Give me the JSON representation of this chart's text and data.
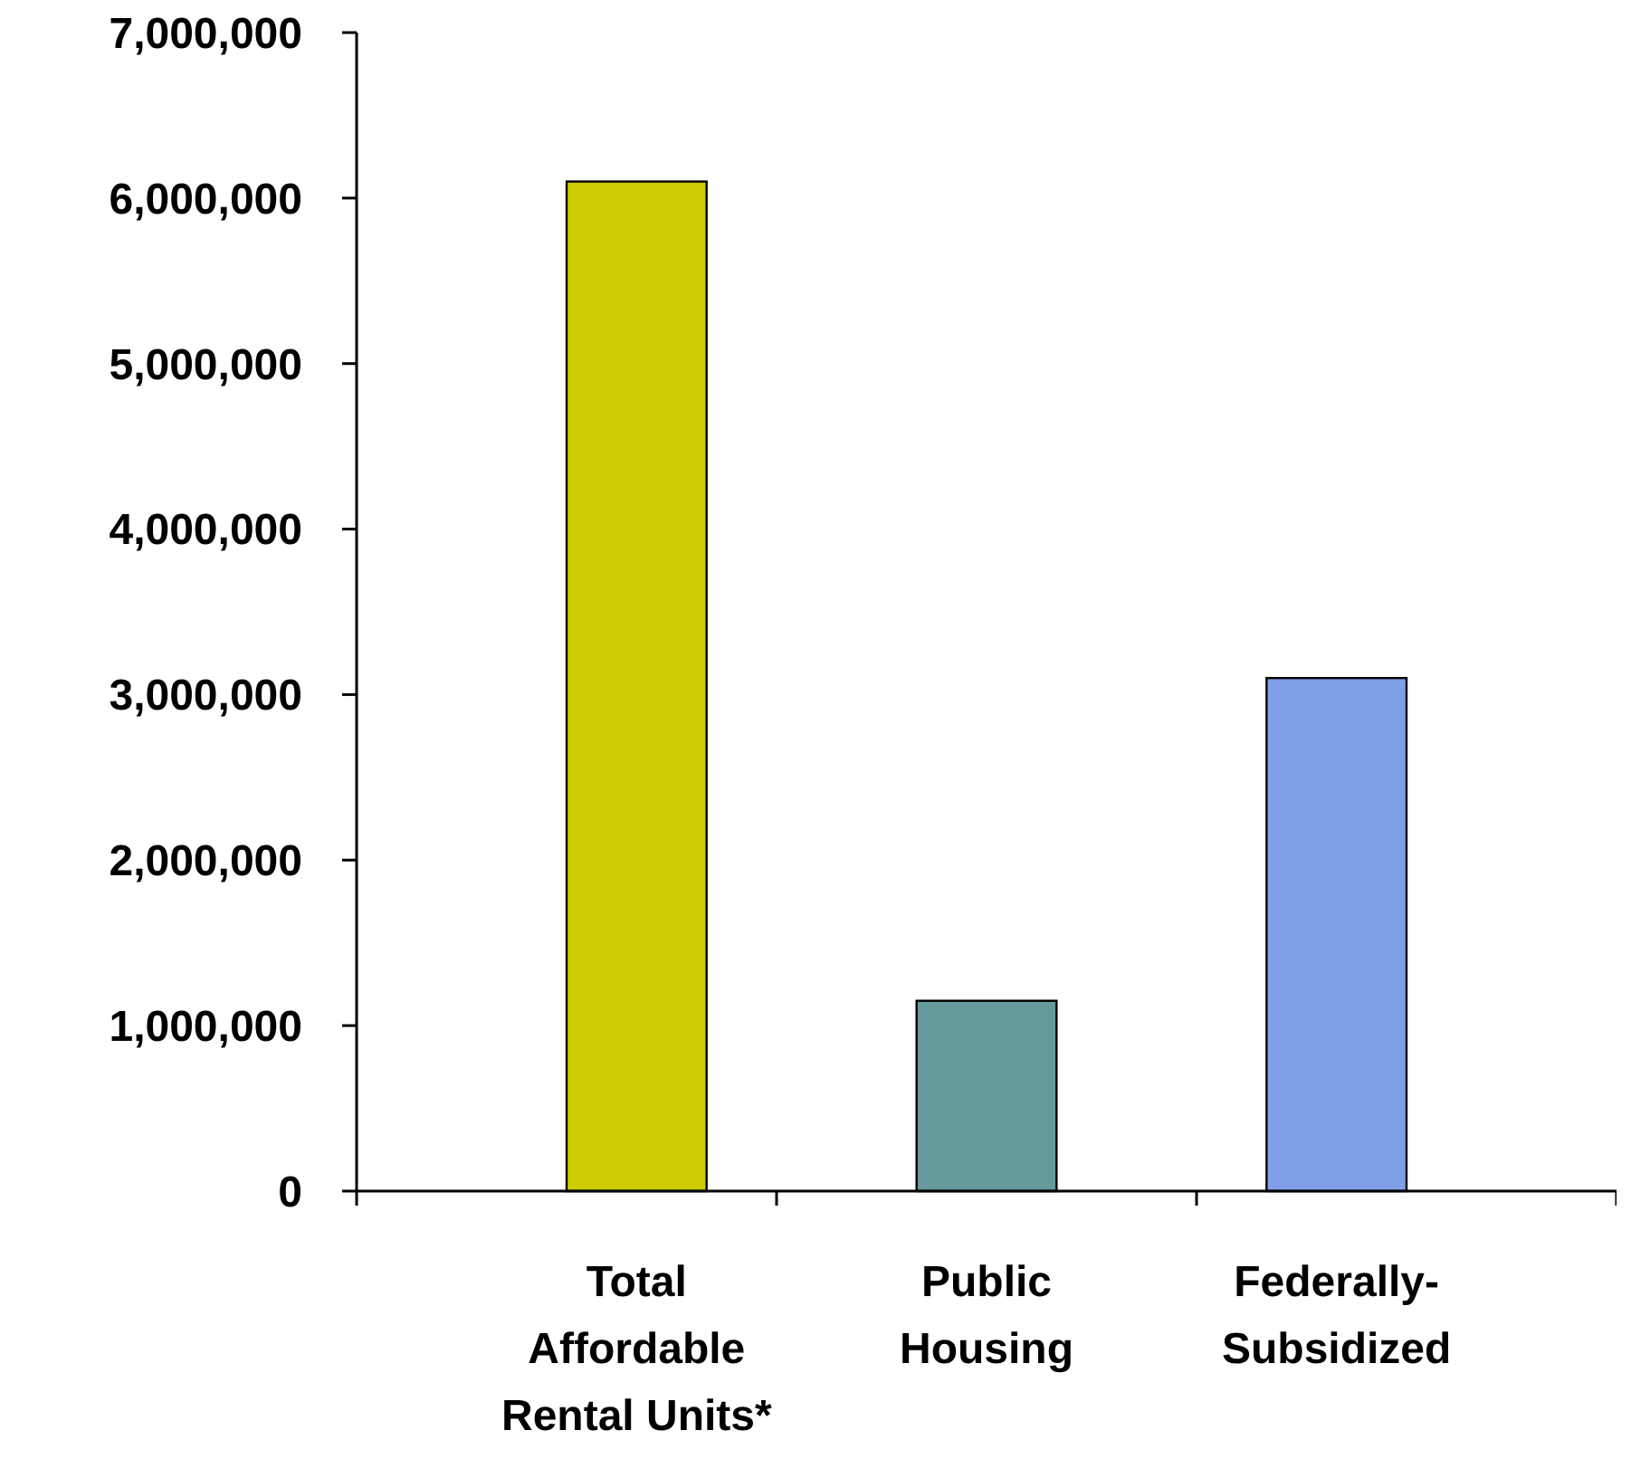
{
  "chart_data": {
    "type": "bar",
    "categories": [
      "Total Affordable Rental Units*",
      "Public Housing",
      "Federally-Subsidized"
    ],
    "values": [
      6100000,
      1150000,
      3100000
    ],
    "colors": [
      "#cccc00",
      "#669999",
      "#7f9fe6"
    ],
    "ylim": [
      0,
      7000000
    ],
    "yticks": [
      {
        "value": 0,
        "label": "0"
      },
      {
        "value": 1000000,
        "label": "1,000,000"
      },
      {
        "value": 2000000,
        "label": "2,000,000"
      },
      {
        "value": 3000000,
        "label": "3,000,000"
      },
      {
        "value": 4000000,
        "label": "4,000,000"
      },
      {
        "value": 5000000,
        "label": "5,000,000"
      },
      {
        "value": 6000000,
        "label": "6,000,000"
      },
      {
        "value": 7000000,
        "label": "7,000,000"
      }
    ],
    "grid": false
  }
}
